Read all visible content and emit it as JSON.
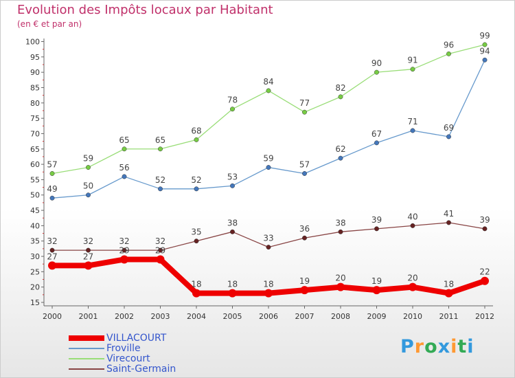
{
  "chart_data": {
    "type": "line",
    "title": "Evolution des Impôts locaux par Habitant",
    "subtitle": "(en € et par an)",
    "xlabel": "",
    "ylabel": "",
    "ylim": [
      15,
      100
    ],
    "yticks": [
      15,
      20,
      25,
      30,
      35,
      40,
      45,
      50,
      55,
      60,
      65,
      70,
      75,
      80,
      85,
      90,
      95,
      100
    ],
    "grid": false,
    "x": [
      "2000",
      "2001",
      "2002",
      "2003",
      "2004",
      "2005",
      "2006",
      "2007",
      "2008",
      "2009",
      "2010",
      "2011",
      "2012"
    ],
    "series": [
      {
        "name": "VILLACOURT",
        "color": "#ee0000",
        "marker": "#ee0000",
        "values": [
          27,
          27,
          29,
          29,
          18,
          18,
          18,
          19,
          20,
          19,
          20,
          18,
          22
        ]
      },
      {
        "name": "Froville",
        "color": "#6699cc",
        "marker": "#4477bb",
        "values": [
          49,
          50,
          56,
          52,
          52,
          53,
          59,
          57,
          62,
          67,
          71,
          69,
          94
        ]
      },
      {
        "name": "Virecourt",
        "color": "#99dd77",
        "marker": "#77cc44",
        "values": [
          57,
          59,
          65,
          65,
          68,
          78,
          84,
          77,
          82,
          90,
          91,
          96,
          99
        ]
      },
      {
        "name": "Saint-Germain",
        "color": "#884444",
        "marker": "#662222",
        "values": [
          32,
          32,
          32,
          32,
          35,
          38,
          33,
          36,
          38,
          39,
          40,
          41,
          39
        ]
      }
    ],
    "legend_position": "bottom-left"
  },
  "logo": {
    "text": "Proxiti",
    "letters": [
      "P",
      "r",
      "o",
      "x",
      "i",
      "t",
      "i"
    ],
    "colors": [
      "#3399dd",
      "#ff9933",
      "#33aa55",
      "#3399dd",
      "#ff9933",
      "#33aa55",
      "#3399dd"
    ]
  },
  "colors": {
    "title": "#c0306a",
    "axis": "#666666",
    "tick_label": "#333333",
    "value_label": "#444444",
    "legend_text": "#3355cc"
  }
}
